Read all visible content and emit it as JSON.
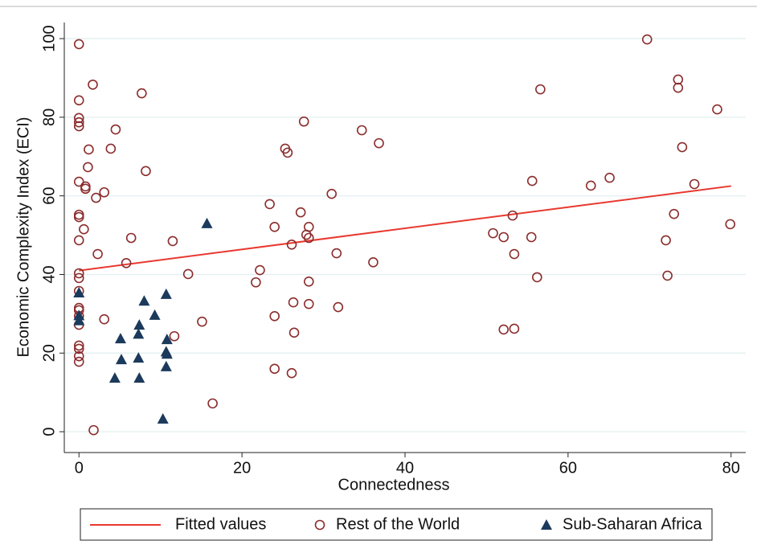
{
  "chart_data": {
    "type": "scatter",
    "x_label": "Connectedness",
    "y_label": "Economic Complexity Index (ECI)",
    "xlim": [
      -1.8,
      81.8
    ],
    "ylim": [
      -5.3,
      104.1
    ],
    "xticks": [
      0,
      20,
      40,
      60,
      80
    ],
    "yticks": [
      0,
      20,
      40,
      60,
      80,
      100
    ],
    "grid": true,
    "legend": "bottom",
    "series": [
      {
        "name": "Fitted values",
        "type": "line",
        "color": "#e8392f",
        "x": [
          0,
          80
        ],
        "values": [
          41,
          62.5
        ]
      },
      {
        "name": "Rest of the World",
        "type": "scatter",
        "marker": "circle",
        "color": "#8b2c2c",
        "x": [
          0,
          0,
          0,
          0,
          0,
          0,
          0,
          0,
          0,
          0,
          0,
          0,
          0,
          0,
          0,
          0,
          0,
          0,
          0,
          0,
          1.7,
          1.2,
          1.1,
          0.8,
          0.8,
          0.6,
          2.1,
          2.3,
          3.1,
          3.1,
          1.8,
          3.9,
          4.5,
          7.7,
          8.2,
          6.4,
          5.8,
          11.5,
          11.7,
          13.4,
          15.1,
          16.4,
          21.7,
          22.2,
          23.4,
          24,
          24,
          24,
          25.3,
          25.6,
          26.1,
          26.3,
          26.4,
          26.1,
          27.2,
          27.6,
          27.9,
          28.2,
          28.2,
          28.2,
          28.2,
          31,
          31.6,
          31.8,
          34.7,
          36.1,
          36.8,
          50.8,
          52.1,
          52.1,
          53.2,
          53.4,
          53.4,
          55.5,
          55.6,
          56.2,
          56.6,
          62.8,
          65.1,
          69.7,
          72,
          72.2,
          73,
          73.5,
          73.5,
          74,
          75.5,
          78.3,
          79.9
        ],
        "values": [
          98.6,
          84.3,
          79.8,
          78.7,
          77.7,
          63.6,
          55.2,
          54.6,
          48.7,
          40.3,
          39.1,
          35.8,
          31.5,
          30.9,
          29.4,
          27.2,
          21.9,
          21.1,
          19.2,
          17.8,
          88.3,
          71.8,
          67.3,
          62.4,
          61.8,
          51.5,
          59.5,
          45.2,
          60.9,
          28.6,
          0.4,
          72,
          76.9,
          86.1,
          66.3,
          49.3,
          42.9,
          48.5,
          24.3,
          40.1,
          28,
          7.2,
          38,
          41.1,
          57.9,
          52.1,
          29.4,
          16,
          72,
          71,
          47.6,
          32.9,
          25.2,
          14.9,
          55.8,
          78.9,
          50.1,
          52.1,
          49.3,
          38.2,
          32.5,
          60.5,
          45.4,
          31.7,
          76.7,
          43.1,
          73.4,
          50.5,
          49.5,
          26,
          55,
          26.2,
          45.2,
          49.5,
          63.8,
          39.3,
          87.1,
          62.6,
          64.6,
          99.8,
          48.7,
          39.7,
          55.4,
          89.6,
          87.5,
          72.4,
          63,
          82,
          52.8
        ]
      },
      {
        "name": "Sub-Saharan Africa",
        "type": "scatter",
        "marker": "triangle",
        "color": "#1b3a5c",
        "x": [
          0,
          0,
          0,
          4.4,
          5.1,
          5.2,
          7.4,
          7.3,
          7.3,
          7.4,
          8,
          9.3,
          10.3,
          10.7,
          10.8,
          10.7,
          10.8,
          10.7,
          15.7
        ],
        "values": [
          35.4,
          29.6,
          28.3,
          13.7,
          23.7,
          18.4,
          13.7,
          18.8,
          24.9,
          27.2,
          33.3,
          29.7,
          3.3,
          35,
          23.5,
          20.4,
          19.8,
          16.6,
          53
        ]
      }
    ]
  }
}
